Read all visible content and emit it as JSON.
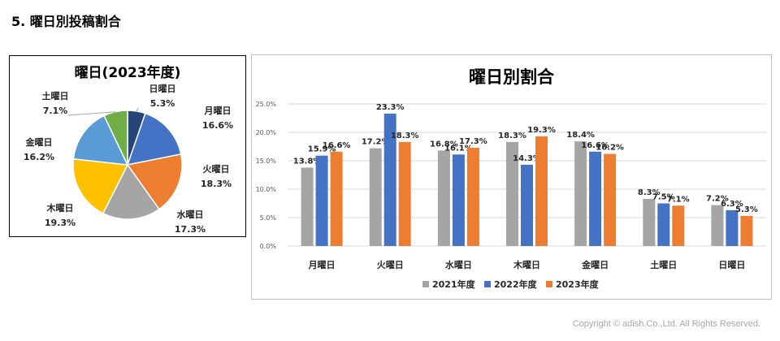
{
  "page": {
    "title": "5.  曜日別投稿割合",
    "copyright": "Copyright © adish.Co.,Ltd.  All Rights Reserved."
  },
  "chart_data": [
    {
      "type": "pie",
      "title": "曜日(2023年度)",
      "categories": [
        "日曜日",
        "月曜日",
        "火曜日",
        "水曜日",
        "木曜日",
        "金曜日",
        "土曜日"
      ],
      "values": [
        5.3,
        16.6,
        18.3,
        17.3,
        19.3,
        16.2,
        7.1
      ],
      "value_labels": [
        "5.3%",
        "16.6%",
        "18.3%",
        "17.3%",
        "19.3%",
        "16.2%",
        "7.1%"
      ],
      "colors": [
        "#264478",
        "#4472c4",
        "#ed7d31",
        "#a5a5a5",
        "#ffc000",
        "#5b9bd5",
        "#70ad47"
      ]
    },
    {
      "type": "bar",
      "title": "曜日別割合",
      "categories": [
        "月曜日",
        "火曜日",
        "水曜日",
        "木曜日",
        "金曜日",
        "土曜日",
        "日曜日"
      ],
      "series": [
        {
          "name": "2021年度",
          "color": "#a5a5a5",
          "values": [
            13.8,
            17.2,
            16.8,
            18.3,
            18.4,
            8.3,
            7.2
          ]
        },
        {
          "name": "2022年度",
          "color": "#4472c4",
          "values": [
            15.9,
            23.3,
            16.1,
            14.3,
            16.6,
            7.5,
            6.3
          ]
        },
        {
          "name": "2023年度",
          "color": "#ed7d31",
          "values": [
            16.6,
            18.3,
            17.3,
            19.3,
            16.2,
            7.1,
            5.3
          ]
        }
      ],
      "y_ticks": [
        "0.0%",
        "5.0%",
        "10.0%",
        "15.0%",
        "20.0%",
        "25.0%"
      ],
      "ylim": [
        0,
        25
      ],
      "grid": true,
      "legend": "bottom"
    }
  ]
}
